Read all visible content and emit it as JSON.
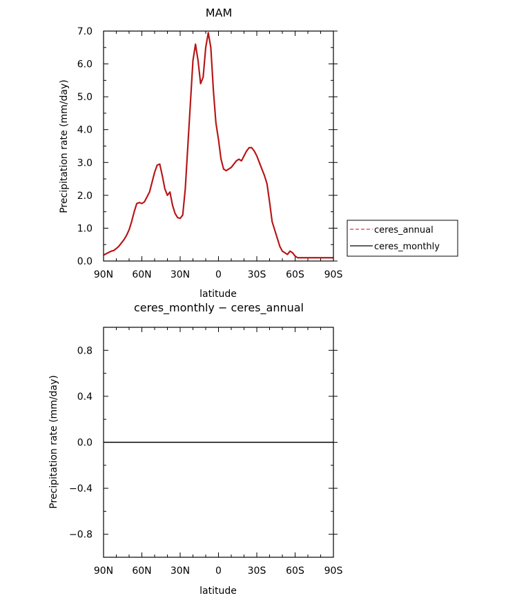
{
  "chart_data": [
    {
      "type": "line",
      "title": "MAM",
      "xlabel": "latitude",
      "ylabel": "Precipitation rate (mm/day)",
      "xlim": [
        90,
        -90
      ],
      "ylim": [
        0,
        7
      ],
      "xticks": [
        90,
        60,
        30,
        0,
        -30,
        -60,
        -90
      ],
      "xtick_labels": [
        "90N",
        "60N",
        "30N",
        "0",
        "30S",
        "60S",
        "90S"
      ],
      "yticks": [
        0,
        1,
        2,
        3,
        4,
        5,
        6,
        7
      ],
      "ytick_labels": [
        "0.0",
        "1.0",
        "2.0",
        "3.0",
        "4.0",
        "5.0",
        "6.0",
        "7.0"
      ],
      "legend": {
        "placement": "right",
        "entries": [
          {
            "name": "ceres_annual",
            "color": "#e0303a",
            "style": "dashed"
          },
          {
            "name": "ceres_monthly",
            "color": "#000000",
            "style": "solid"
          }
        ]
      },
      "series": [
        {
          "name": "ceres_annual",
          "color": "#c81e1e",
          "style": "dashed",
          "x": [
            90,
            88,
            86,
            84,
            82,
            80,
            78,
            76,
            74,
            72,
            70,
            68,
            66,
            64,
            62,
            60,
            58,
            56,
            54,
            52,
            50,
            48,
            46,
            44,
            42,
            40,
            38,
            36,
            34,
            32,
            30,
            28,
            26,
            24,
            22,
            20,
            18,
            16,
            14,
            12,
            10,
            8,
            6,
            4,
            2,
            0,
            -2,
            -4,
            -6,
            -8,
            -10,
            -12,
            -14,
            -16,
            -18,
            -20,
            -22,
            -24,
            -26,
            -28,
            -30,
            -32,
            -34,
            -36,
            -38,
            -40,
            -42,
            -44,
            -46,
            -48,
            -50,
            -52,
            -54,
            -56,
            -58,
            -60,
            -62,
            -64,
            -66,
            -68,
            -70,
            -72,
            -74,
            -76,
            -78,
            -80,
            -82,
            -84,
            -86,
            -88,
            -90
          ],
          "values": [
            0.18,
            0.22,
            0.26,
            0.3,
            0.32,
            0.38,
            0.45,
            0.55,
            0.65,
            0.78,
            0.95,
            1.2,
            1.5,
            1.75,
            1.78,
            1.75,
            1.8,
            1.95,
            2.1,
            2.4,
            2.7,
            2.92,
            2.95,
            2.6,
            2.2,
            2.0,
            2.1,
            1.7,
            1.45,
            1.32,
            1.3,
            1.4,
            2.2,
            3.5,
            4.8,
            6.1,
            6.6,
            6.1,
            5.4,
            5.6,
            6.5,
            6.95,
            6.5,
            5.2,
            4.2,
            3.7,
            3.1,
            2.8,
            2.75,
            2.8,
            2.85,
            2.95,
            3.05,
            3.1,
            3.05,
            3.2,
            3.35,
            3.45,
            3.45,
            3.35,
            3.2,
            3.0,
            2.8,
            2.6,
            2.35,
            1.8,
            1.2,
            0.95,
            0.7,
            0.45,
            0.3,
            0.25,
            0.2,
            0.3,
            0.25,
            0.15,
            0.1,
            0.1,
            0.1,
            0.1,
            0.1,
            0.1,
            0.1,
            0.1,
            0.1,
            0.1,
            0.1,
            0.1,
            0.1,
            0.1,
            0.1
          ]
        },
        {
          "name": "ceres_monthly",
          "color": "#000000",
          "style": "solid",
          "x": [
            90,
            88,
            86,
            84,
            82,
            80,
            78,
            76,
            74,
            72,
            70,
            68,
            66,
            64,
            62,
            60,
            58,
            56,
            54,
            52,
            50,
            48,
            46,
            44,
            42,
            40,
            38,
            36,
            34,
            32,
            30,
            28,
            26,
            24,
            22,
            20,
            18,
            16,
            14,
            12,
            10,
            8,
            6,
            4,
            2,
            0,
            -2,
            -4,
            -6,
            -8,
            -10,
            -12,
            -14,
            -16,
            -18,
            -20,
            -22,
            -24,
            -26,
            -28,
            -30,
            -32,
            -34,
            -36,
            -38,
            -40,
            -42,
            -44,
            -46,
            -48,
            -50,
            -52,
            -54,
            -56,
            -58,
            -60,
            -62,
            -64,
            -66,
            -68,
            -70,
            -72,
            -74,
            -76,
            -78,
            -80,
            -82,
            -84,
            -86,
            -88,
            -90
          ],
          "values": [
            0.18,
            0.22,
            0.26,
            0.3,
            0.32,
            0.38,
            0.45,
            0.55,
            0.65,
            0.78,
            0.95,
            1.2,
            1.5,
            1.75,
            1.78,
            1.75,
            1.8,
            1.95,
            2.1,
            2.4,
            2.7,
            2.92,
            2.95,
            2.6,
            2.2,
            2.0,
            2.1,
            1.7,
            1.45,
            1.32,
            1.3,
            1.4,
            2.2,
            3.5,
            4.8,
            6.1,
            6.6,
            6.1,
            5.4,
            5.6,
            6.5,
            6.95,
            6.5,
            5.2,
            4.2,
            3.7,
            3.1,
            2.8,
            2.75,
            2.8,
            2.85,
            2.95,
            3.05,
            3.1,
            3.05,
            3.2,
            3.35,
            3.45,
            3.45,
            3.35,
            3.2,
            3.0,
            2.8,
            2.6,
            2.35,
            1.8,
            1.2,
            0.95,
            0.7,
            0.45,
            0.3,
            0.25,
            0.2,
            0.3,
            0.25,
            0.15,
            0.1,
            0.1,
            0.1,
            0.1,
            0.1,
            0.1,
            0.1,
            0.1,
            0.1,
            0.1,
            0.1,
            0.1,
            0.1,
            0.1,
            0.1
          ]
        }
      ]
    },
    {
      "type": "line",
      "title": "ceres_monthly − ceres_annual",
      "xlabel": "latitude",
      "ylabel": "Precipitation rate (mm/day)",
      "xlim": [
        90,
        -90
      ],
      "ylim": [
        -1,
        1
      ],
      "xticks": [
        90,
        60,
        30,
        0,
        -30,
        -60,
        -90
      ],
      "xtick_labels": [
        "90N",
        "60N",
        "30N",
        "0",
        "30S",
        "60S",
        "90S"
      ],
      "yticks": [
        -0.8,
        -0.4,
        0,
        0.4,
        0.8
      ],
      "ytick_labels": [
        "−0.8",
        "−0.4",
        "0.0",
        "0.4",
        "0.8"
      ],
      "series": [
        {
          "name": "",
          "color": "#000000",
          "style": "solid",
          "x": [
            90,
            -90
          ],
          "values": [
            0,
            0
          ]
        }
      ]
    }
  ]
}
